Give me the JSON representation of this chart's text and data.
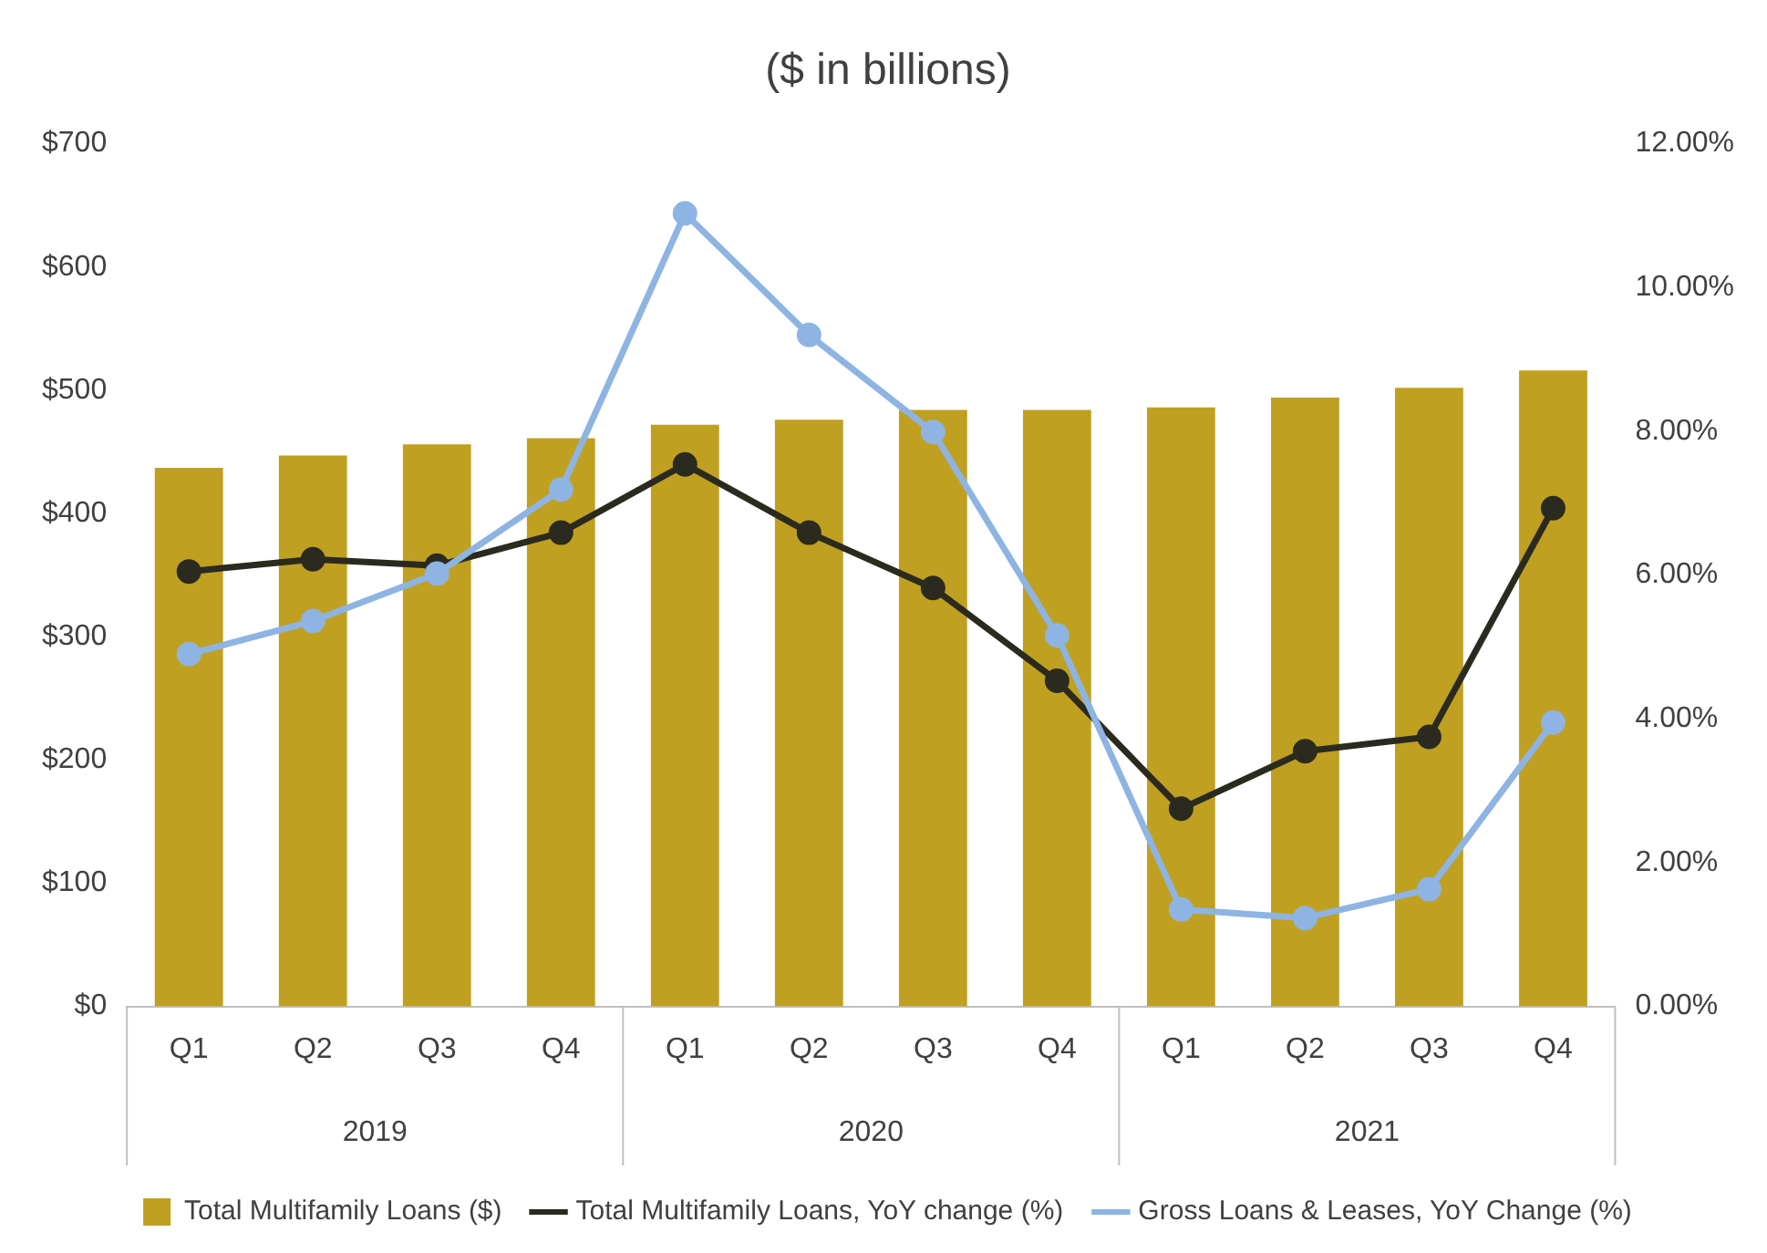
{
  "chart_data": {
    "type": "bar",
    "title": "($ in billions)",
    "categories": [
      "Q1",
      "Q2",
      "Q3",
      "Q4",
      "Q1",
      "Q2",
      "Q3",
      "Q4",
      "Q1",
      "Q2",
      "Q3",
      "Q4"
    ],
    "annotations": [
      "2019",
      "2020",
      "2021"
    ],
    "series": [
      {
        "name": "Total Multifamily Loans ($)",
        "color": "#c0a020",
        "values": [
          437,
          447,
          456,
          461,
          472,
          476,
          484,
          484,
          486,
          494,
          502,
          516
        ]
      },
      {
        "name": "Total Multifamily Loans, YoY change (%)",
        "type": "line",
        "axis": "y2",
        "color": "#2b2a1f",
        "values": [
          6.05,
          6.22,
          6.13,
          6.59,
          7.54,
          6.59,
          5.82,
          4.53,
          2.75,
          3.55,
          3.75,
          6.93
        ]
      },
      {
        "name": "Gross Loans & Leases, YoY Change (%)",
        "type": "line",
        "axis": "y2",
        "color": "#8db4e2",
        "values": [
          4.9,
          5.36,
          6.02,
          7.19,
          11.03,
          9.34,
          7.99,
          5.16,
          1.35,
          1.23,
          1.63,
          3.95
        ]
      }
    ],
    "ylim": [
      0,
      700
    ],
    "yticks": [
      {
        "value": 0,
        "label": "$0"
      },
      {
        "value": 100,
        "label": "$100"
      },
      {
        "value": 200,
        "label": "$200"
      },
      {
        "value": 300,
        "label": "$300"
      },
      {
        "value": 400,
        "label": "$400"
      },
      {
        "value": 500,
        "label": "$500"
      },
      {
        "value": 600,
        "label": "$600"
      },
      {
        "value": 700,
        "label": "$700"
      }
    ],
    "y2lim": [
      0,
      12
    ],
    "y2ticks": [
      {
        "value": 0,
        "label": "0.00%"
      },
      {
        "value": 2,
        "label": "2.00%"
      },
      {
        "value": 4,
        "label": "4.00%"
      },
      {
        "value": 6,
        "label": "6.00%"
      },
      {
        "value": 8,
        "label": "8.00%"
      },
      {
        "value": 10,
        "label": "10.00%"
      },
      {
        "value": 12,
        "label": "12.00%"
      }
    ],
    "grid": false,
    "legend": "bottom",
    "marker": "circle",
    "line_style": "solid"
  }
}
